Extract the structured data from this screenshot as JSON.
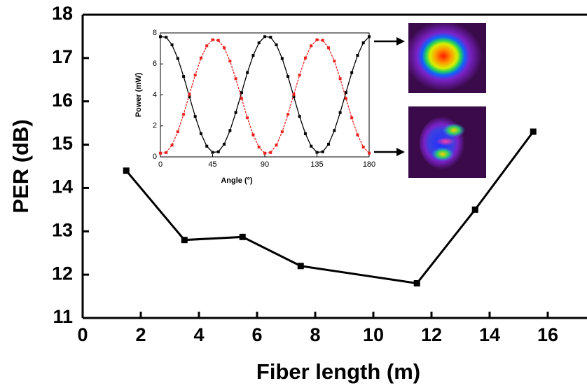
{
  "chart_data": [
    {
      "type": "line",
      "xlabel": "Fiber length (m)",
      "ylabel": "PER (dB)",
      "x": [
        1.5,
        3.5,
        5.5,
        7.5,
        11.5,
        13.5,
        15.5
      ],
      "series": [
        {
          "color": "#000000",
          "values": [
            14.4,
            12.8,
            12.87,
            12.2,
            11.8,
            13.5,
            15.3
          ]
        }
      ],
      "xlim": [
        0,
        17.35
      ],
      "ylim": [
        11,
        18
      ],
      "xticks": [
        0,
        2,
        4,
        6,
        8,
        10,
        12,
        14,
        16
      ],
      "yticks": [
        11,
        12,
        13,
        14,
        15,
        16,
        17,
        18
      ]
    },
    {
      "type": "line",
      "xlabel": "Angle (°)",
      "ylabel": "Power (mW)",
      "x": [
        0,
        5,
        10,
        15,
        20,
        25,
        30,
        35,
        40,
        45,
        50,
        55,
        60,
        65,
        70,
        75,
        80,
        85,
        90,
        95,
        100,
        105,
        110,
        115,
        120,
        125,
        130,
        135,
        140,
        145,
        150,
        155,
        160,
        165,
        170,
        175,
        180
      ],
      "series": [
        {
          "color": "#000000",
          "values": [
            7.76,
            7.72,
            7.23,
            6.35,
            5.19,
            3.89,
            2.61,
            1.5,
            0.69,
            0.29,
            0.33,
            0.82,
            1.7,
            2.86,
            4.15,
            5.44,
            6.55,
            7.36,
            7.76,
            7.72,
            7.23,
            6.35,
            5.19,
            3.89,
            2.61,
            1.5,
            0.69,
            0.29,
            0.33,
            0.82,
            1.7,
            2.86,
            4.15,
            5.44,
            6.55,
            7.36,
            7.76
          ]
        },
        {
          "color": "#e8231f",
          "values": [
            0.24,
            0.28,
            0.76,
            1.62,
            2.75,
            4.03,
            5.28,
            6.38,
            7.17,
            7.56,
            7.52,
            7.04,
            6.18,
            5.05,
            3.77,
            2.52,
            1.42,
            0.63,
            0.24,
            0.28,
            0.76,
            1.62,
            2.75,
            4.03,
            5.28,
            6.38,
            7.17,
            7.56,
            7.52,
            7.04,
            6.18,
            5.05,
            3.77,
            2.52,
            1.42,
            0.63,
            0.24
          ]
        }
      ],
      "xlim": [
        0,
        180
      ],
      "ylim": [
        0,
        8
      ],
      "xticks": [
        0,
        45,
        90,
        135,
        180
      ],
      "yticks": [
        0,
        2,
        4,
        6,
        8
      ]
    }
  ]
}
